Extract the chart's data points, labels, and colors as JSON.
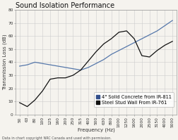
{
  "title": "Sound Isolation Performance",
  "xlabel": "Frequency (Hz)",
  "ylabel": "Transmission Loss (dB)",
  "footnote": "Data in chart copyright NRC Canada and used with permission.",
  "frequencies": [
    50,
    63,
    80,
    100,
    125,
    160,
    200,
    250,
    315,
    400,
    500,
    630,
    800,
    1000,
    1250,
    1600,
    2000,
    2500,
    3150,
    4000,
    5000
  ],
  "concrete": [
    37,
    38,
    40,
    39,
    38,
    37,
    36,
    35,
    34,
    36,
    39,
    42,
    46,
    49,
    52,
    55,
    58,
    61,
    64,
    68,
    72
  ],
  "steel_stud": [
    9,
    6,
    11,
    18,
    27,
    28,
    28,
    30,
    34,
    41,
    48,
    54,
    58,
    63,
    64,
    58,
    45,
    44,
    49,
    53,
    56
  ],
  "concrete_color": "#5577aa",
  "steel_color": "#111111",
  "concrete_legend_color": "#334f8a",
  "steel_legend_color": "#111111",
  "bg_color": "#f5f3ee",
  "plot_bg_color": "#f5f3ee",
  "grid_color": "#cccccc",
  "ylim": [
    0,
    80
  ],
  "yticks": [
    0,
    10,
    20,
    30,
    40,
    50,
    60,
    70,
    80
  ],
  "title_fontsize": 7.0,
  "label_fontsize": 5.0,
  "tick_fontsize": 4.2,
  "legend_fontsize": 4.8,
  "footnote_fontsize": 3.5,
  "legend_label1": "4\" Solid Concrete from IR-811",
  "legend_label2": "Steel Stud Wall From IR-761"
}
